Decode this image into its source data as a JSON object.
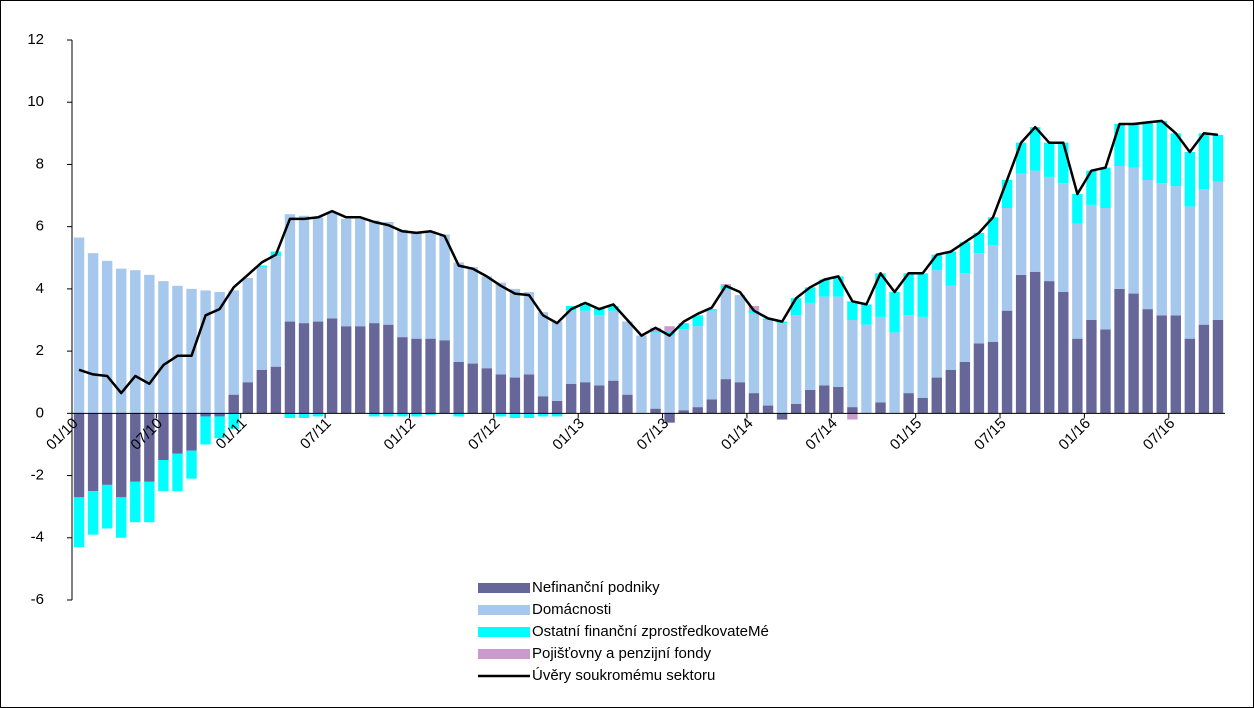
{
  "chart_data": {
    "type": "bar",
    "categories": [
      "01/10",
      null,
      null,
      null,
      null,
      null,
      "07/10",
      null,
      null,
      null,
      null,
      null,
      "01/11",
      null,
      null,
      null,
      null,
      null,
      "07/11",
      null,
      null,
      null,
      null,
      null,
      "01/12",
      null,
      null,
      null,
      null,
      null,
      "07/12",
      null,
      null,
      null,
      null,
      null,
      "01/13",
      null,
      null,
      null,
      null,
      null,
      "07/13",
      null,
      null,
      null,
      null,
      null,
      "01/14",
      null,
      null,
      null,
      null,
      null,
      "07/14",
      null,
      null,
      null,
      null,
      null,
      "01/15",
      null,
      null,
      null,
      null,
      null,
      "07/15",
      null,
      null,
      null,
      null,
      null,
      "01/16",
      null,
      null,
      null,
      null,
      null,
      "07/16",
      null,
      null,
      null
    ],
    "series": [
      {
        "name": "Nefinanční podniky",
        "color": "#666699",
        "type": "bar",
        "values": [
          -2.7,
          -2.5,
          -2.3,
          -2.7,
          -2.2,
          -2.2,
          -1.5,
          -1.3,
          -1.2,
          -0.1,
          -0.1,
          0.6,
          1.0,
          1.4,
          1.5,
          2.95,
          2.9,
          2.95,
          3.05,
          2.8,
          2.8,
          2.9,
          2.85,
          2.45,
          2.4,
          2.4,
          2.35,
          1.65,
          1.6,
          1.45,
          1.25,
          1.15,
          1.25,
          0.55,
          0.4,
          0.95,
          1.0,
          0.9,
          1.05,
          0.6,
          0,
          0.15,
          -0.3,
          0.1,
          0.2,
          0.45,
          1.1,
          1.0,
          0.65,
          0.25,
          -0.2,
          0.3,
          0.75,
          0.9,
          0.85,
          0.2,
          0,
          0.35,
          0,
          0.65,
          0.5,
          1.15,
          1.4,
          1.65,
          2.25,
          2.3,
          3.3,
          4.45,
          4.55,
          4.25,
          3.9,
          2.4,
          3.0,
          2.7,
          4.0,
          3.85,
          3.35,
          3.15,
          3.15,
          2.4,
          2.85,
          3.0
        ]
      },
      {
        "name": "Domácnosti",
        "color": "#a6c8ec",
        "type": "bar",
        "values": [
          5.65,
          5.15,
          4.9,
          4.65,
          4.6,
          4.45,
          4.25,
          4.1,
          4.0,
          3.95,
          3.9,
          3.35,
          3.35,
          3.3,
          3.55,
          3.45,
          3.45,
          3.35,
          3.4,
          3.45,
          3.45,
          3.3,
          3.3,
          3.45,
          3.45,
          3.45,
          3.4,
          3.2,
          3.1,
          2.95,
          2.95,
          2.85,
          2.65,
          2.7,
          2.55,
          2.35,
          2.3,
          2.25,
          2.25,
          2.35,
          2.5,
          2.45,
          2.5,
          2.6,
          2.6,
          2.85,
          2.9,
          2.8,
          2.55,
          2.75,
          2.9,
          2.85,
          2.8,
          2.85,
          2.9,
          2.8,
          2.85,
          2.75,
          2.6,
          2.5,
          2.6,
          3.45,
          2.7,
          2.85,
          2.9,
          3.1,
          3.3,
          3.25,
          3.25,
          3.35,
          3.5,
          3.7,
          3.7,
          3.9,
          3.95,
          4.05,
          4.15,
          4.25,
          4.15,
          4.25,
          4.35,
          4.45
        ]
      },
      {
        "name": "Ostatní finanční zprostředkovateMé",
        "color": "#00ffff",
        "type": "bar",
        "values": [
          -1.6,
          -1.4,
          -1.4,
          -1.3,
          -1.3,
          -1.3,
          -1.0,
          -1.2,
          -0.9,
          -0.9,
          -0.7,
          -0.5,
          0,
          0.05,
          0.15,
          -0.15,
          -0.15,
          -0.1,
          0,
          0,
          0,
          -0.1,
          -0.1,
          -0.1,
          -0.1,
          -0.05,
          0,
          -0.1,
          0,
          0,
          -0.1,
          -0.15,
          -0.15,
          -0.1,
          -0.1,
          0.15,
          0.25,
          0.25,
          0.15,
          0,
          0,
          0.05,
          0.15,
          0.2,
          0.35,
          0.05,
          0.1,
          0,
          0.1,
          0.05,
          0.05,
          0.55,
          0.5,
          0.55,
          0.65,
          0.6,
          0.65,
          1.4,
          1.3,
          1.35,
          1.4,
          0.5,
          1.1,
          1.0,
          0.65,
          0.9,
          0.9,
          1.0,
          1.4,
          1.1,
          1.3,
          0.95,
          1.1,
          1.3,
          1.35,
          1.4,
          1.85,
          2.0,
          1.7,
          1.75,
          1.8,
          1.5
        ]
      },
      {
        "name": "Pojišťovny a penzijní fondy",
        "color": "#cc99cc",
        "type": "bar",
        "values": [
          0,
          0,
          0,
          0,
          0,
          0,
          0,
          0,
          0,
          0,
          0,
          0,
          0,
          0,
          0,
          0,
          0,
          0,
          0,
          0,
          0,
          0,
          0,
          0,
          0,
          0,
          0,
          0,
          0,
          0,
          0,
          0,
          0,
          0,
          0,
          0,
          0,
          0,
          0,
          0,
          0,
          0.1,
          0.15,
          0,
          0,
          0,
          0.05,
          0,
          0.15,
          0,
          0,
          0,
          0,
          0,
          0,
          -0.2,
          0,
          0,
          0,
          0,
          0,
          0,
          0,
          0,
          0,
          0,
          0,
          0,
          0,
          0,
          0,
          0,
          0,
          0,
          0,
          0,
          0,
          0,
          0,
          0,
          0,
          0
        ]
      },
      {
        "name": "Úvěry soukromému sektoru",
        "color": "#000000",
        "type": "line",
        "values": [
          1.4,
          1.25,
          1.2,
          0.65,
          1.2,
          0.95,
          1.55,
          1.85,
          1.85,
          3.15,
          3.35,
          4.05,
          4.45,
          4.85,
          5.1,
          6.25,
          6.25,
          6.3,
          6.5,
          6.3,
          6.3,
          6.15,
          6.05,
          5.85,
          5.8,
          5.85,
          5.7,
          4.75,
          4.65,
          4.4,
          4.1,
          3.85,
          3.8,
          3.15,
          2.9,
          3.35,
          3.55,
          3.35,
          3.5,
          3.0,
          2.5,
          2.75,
          2.5,
          2.95,
          3.2,
          3.4,
          4.1,
          3.9,
          3.3,
          3.05,
          2.95,
          3.7,
          4.05,
          4.3,
          4.4,
          3.6,
          3.5,
          4.5,
          3.9,
          4.5,
          4.5,
          5.1,
          5.2,
          5.5,
          5.8,
          6.3,
          7.5,
          8.7,
          9.2,
          8.7,
          8.7,
          7.05,
          7.8,
          7.9,
          9.3,
          9.3,
          9.35,
          9.4,
          9.0,
          8.4,
          9.0,
          8.95
        ]
      }
    ],
    "ylim": [
      -6,
      12
    ],
    "yticks": [
      -6,
      -4,
      -2,
      0,
      2,
      4,
      6,
      8,
      10,
      12
    ]
  }
}
